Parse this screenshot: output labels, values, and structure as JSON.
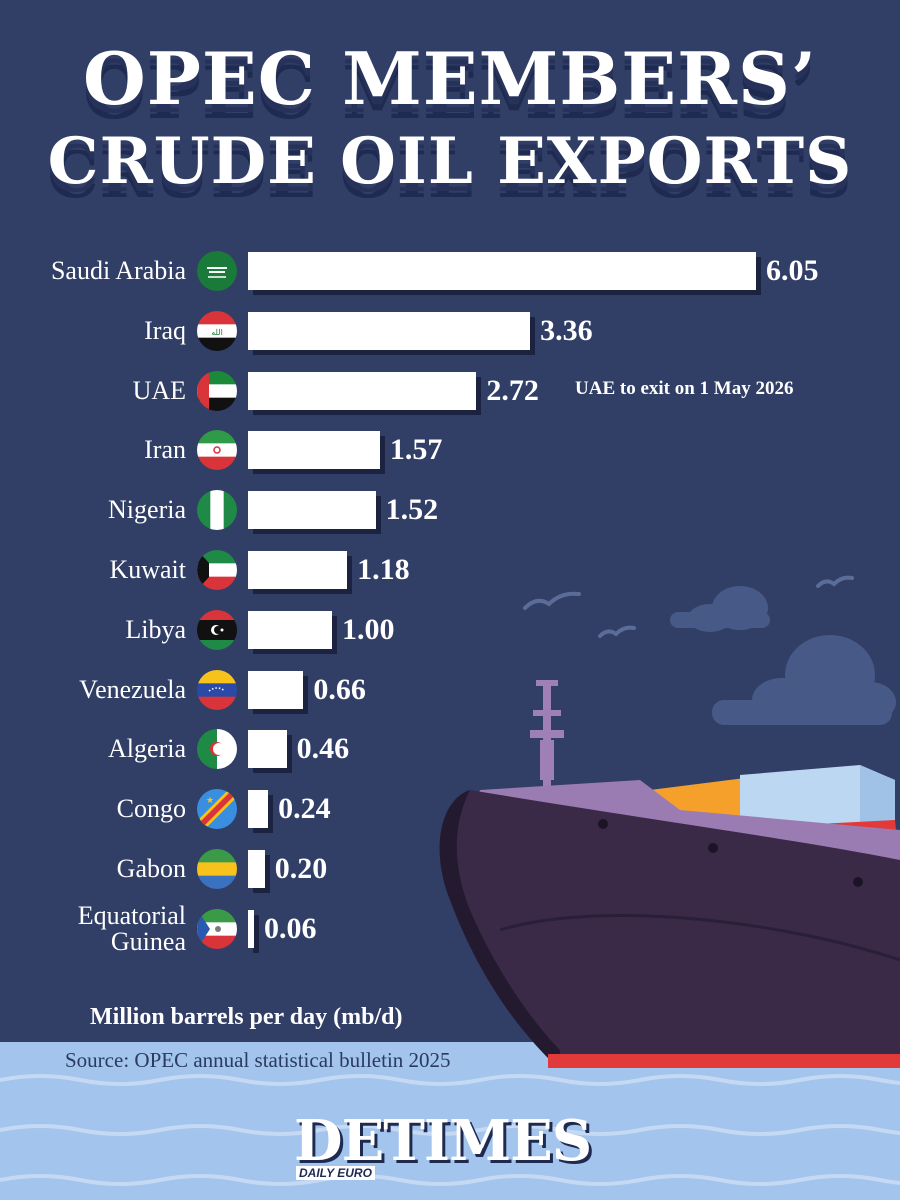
{
  "title": {
    "line1": "OPEC MEMBERS’",
    "line2": "CRUDE OIL EXPORTS"
  },
  "chart_data": {
    "type": "bar",
    "orientation": "horizontal",
    "title": "OPEC MEMBERS’ CRUDE OIL EXPORTS",
    "xlabel": "Million barrels per day (mb/d)",
    "ylabel": "",
    "xlim": [
      0,
      6.05
    ],
    "grid": false,
    "categories": [
      "Saudi Arabia",
      "Iraq",
      "UAE",
      "Iran",
      "Nigeria",
      "Kuwait",
      "Libya",
      "Venezuela",
      "Algeria",
      "Congo",
      "Gabon",
      "Equatorial Guinea"
    ],
    "category_lines": [
      [
        "Saudi Arabia"
      ],
      [
        "Iraq"
      ],
      [
        "UAE"
      ],
      [
        "Iran"
      ],
      [
        "Nigeria"
      ],
      [
        "Kuwait"
      ],
      [
        "Libya"
      ],
      [
        "Venezuela"
      ],
      [
        "Algeria"
      ],
      [
        "Congo"
      ],
      [
        "Gabon"
      ],
      [
        "Equatorial",
        "Guinea"
      ]
    ],
    "values": [
      6.05,
      3.36,
      2.72,
      1.57,
      1.52,
      1.18,
      1.0,
      0.66,
      0.46,
      0.24,
      0.2,
      0.06
    ],
    "value_labels": [
      "6.05",
      "3.36",
      "2.72",
      "1.57",
      "1.52",
      "1.18",
      "1.00",
      "0.66",
      "0.46",
      "0.24",
      "0.20",
      "0.06"
    ],
    "flags": [
      "saudi-arabia-flag-icon",
      "iraq-flag-icon",
      "uae-flag-icon",
      "iran-flag-icon",
      "nigeria-flag-icon",
      "kuwait-flag-icon",
      "libya-flag-icon",
      "venezuela-flag-icon",
      "algeria-flag-icon",
      "congo-flag-icon",
      "gabon-flag-icon",
      "equatorial-guinea-flag-icon"
    ],
    "annotations": [
      {
        "category": "UAE",
        "text": "UAE to exit on 1 May 2026"
      }
    ],
    "bar_color": "#ffffff"
  },
  "footer": {
    "unit": "Million barrels per day (mb/d)",
    "source": "Source: OPEC annual statistical bulletin 2025"
  },
  "logo": {
    "text": "DETIMES",
    "subtitle": "DAILY EURO"
  },
  "colors": {
    "background": "#313e66",
    "ship_hull": "#3a2a48",
    "water": "#a3c4ec",
    "title_shadow": "#1e2a50"
  }
}
